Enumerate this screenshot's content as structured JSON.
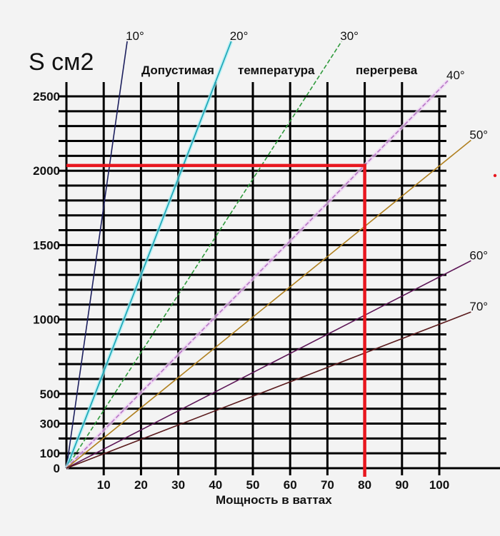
{
  "title": "S см2",
  "caption_words": [
    "Допустимая",
    "температура",
    "перегрева"
  ],
  "xlabel": "Мощность в ваттах",
  "colors": {
    "background": "#f3f3f3",
    "grid": "#000000",
    "highlight": "#e8171f"
  },
  "chart_data": {
    "type": "line",
    "title": "S см2",
    "subtitle": "Допустимая температура перегрева",
    "xlabel": "Мощность в ваттах",
    "ylabel": "S см2",
    "xlim": [
      0,
      100
    ],
    "ylim": [
      0,
      2500
    ],
    "grid": true,
    "x_ticks": [
      10,
      20,
      30,
      40,
      50,
      60,
      70,
      80,
      90,
      100
    ],
    "y_ticks": [
      0,
      100,
      300,
      500,
      1000,
      1500,
      2000,
      2500
    ],
    "series": [
      {
        "name": "10°",
        "color": "#1c1f5e",
        "dashed": false,
        "end": {
          "x": 16.3,
          "y": 2870
        },
        "slope_cm2_per_w": 176
      },
      {
        "name": "20°",
        "color": "#1aa3b5",
        "dashed": false,
        "end": {
          "x": 44.2,
          "y": 2870
        },
        "slope_cm2_per_w": 65
      },
      {
        "name": "30°",
        "color": "#2f9a3c",
        "dashed": true,
        "end": {
          "x": 73.8,
          "y": 2870
        },
        "slope_cm2_per_w": 39
      },
      {
        "name": "40°",
        "color": "#b577c4",
        "dashed": true,
        "end": {
          "x": 102.3,
          "y": 2605
        },
        "slope_cm2_per_w": 25.5
      },
      {
        "name": "50°",
        "color": "#b0801f",
        "dashed": false,
        "end": {
          "x": 108.5,
          "y": 2205
        },
        "slope_cm2_per_w": 20.3
      },
      {
        "name": "60°",
        "color": "#5c1556",
        "dashed": false,
        "end": {
          "x": 108.5,
          "y": 1395
        },
        "slope_cm2_per_w": 12.9
      },
      {
        "name": "70°",
        "color": "#5a1a1c",
        "dashed": false,
        "end": {
          "x": 108.5,
          "y": 1050
        },
        "slope_cm2_per_w": 9.7
      }
    ],
    "annotations": [
      {
        "type": "hline",
        "y": 2035,
        "x_from": 0,
        "x_to": 80,
        "color": "#e8171f",
        "note": "red guide line"
      },
      {
        "type": "vline",
        "x": 80,
        "y_from": 0,
        "y_to": 2035,
        "color": "#e8171f",
        "note": "red guide line at 80 W"
      }
    ]
  }
}
